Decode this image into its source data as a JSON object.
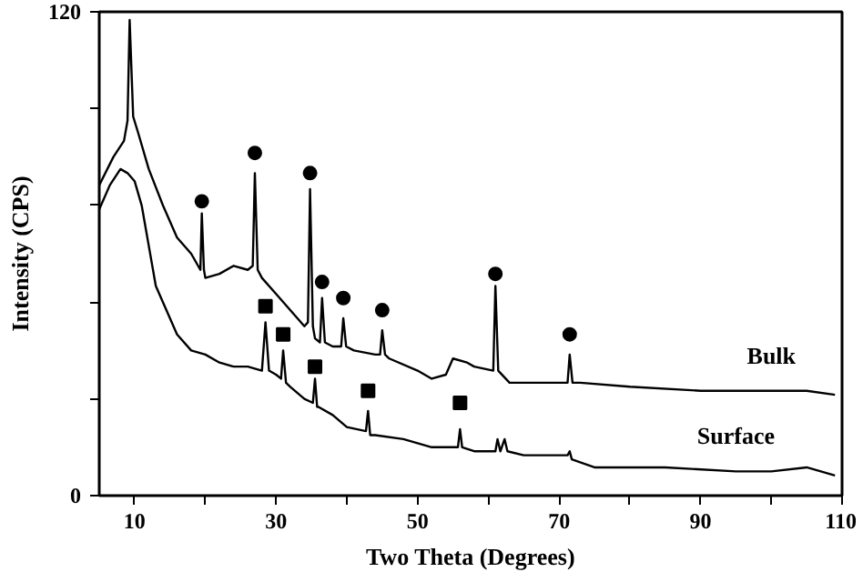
{
  "chart_data": {
    "type": "line",
    "xlabel": "Two Theta (Degrees)",
    "ylabel": "Intensity (CPS)",
    "xlim": [
      5,
      110
    ],
    "ylim": [
      0,
      120
    ],
    "xticks": [
      10,
      {
        "value": 20,
        "label": null
      },
      30,
      {
        "value": 40,
        "label": null
      },
      50,
      {
        "value": 60,
        "label": null
      },
      70,
      {
        "value": 80,
        "label": null
      },
      90,
      {
        "value": 100,
        "label": null
      },
      110
    ],
    "yticks": [
      0,
      {
        "value": 24,
        "label": null
      },
      {
        "value": 48,
        "label": null
      },
      {
        "value": 72,
        "label": null
      },
      {
        "value": 96,
        "label": null
      },
      120
    ],
    "grid": false,
    "line_style": "solid",
    "series": [
      {
        "name": "Bulk",
        "color": "#000000",
        "marker": "none",
        "x": [
          5,
          7,
          8.5,
          9,
          9.3,
          9.8,
          10.5,
          12,
          14,
          16,
          18,
          19.3,
          19.5,
          19.8,
          20,
          22,
          24,
          26,
          26.7,
          27,
          27.4,
          28,
          30,
          32,
          34,
          34.5,
          34.8,
          35.2,
          35.5,
          36.2,
          36.5,
          36.9,
          38,
          39.2,
          39.5,
          39.9,
          41,
          44,
          44.7,
          45,
          45.4,
          46,
          50,
          52,
          54,
          55,
          57,
          58,
          60.7,
          61,
          61.4,
          63,
          70,
          71.2,
          71.5,
          71.9,
          73,
          80,
          90,
          100,
          105,
          109
        ],
        "values": [
          77,
          84,
          88,
          93,
          118,
          94,
          90,
          81,
          72,
          64,
          60,
          56,
          70,
          56,
          54,
          55,
          57,
          56,
          57,
          80,
          56,
          54,
          50,
          46,
          42,
          43,
          76,
          42,
          39,
          38,
          49,
          38,
          37,
          37,
          44,
          37,
          36,
          35,
          35,
          41,
          35,
          34,
          31,
          29,
          30,
          34,
          33,
          32,
          31,
          52,
          31,
          28,
          28,
          28,
          35,
          28,
          28,
          27,
          26,
          26,
          26,
          25
        ]
      },
      {
        "name": "Surface",
        "color": "#000000",
        "marker": "none",
        "x": [
          5,
          6.5,
          8,
          9,
          10,
          11,
          12,
          13,
          14,
          16,
          18,
          20,
          22,
          24,
          26,
          28,
          28.5,
          29,
          30,
          30.7,
          31,
          31.4,
          32,
          34,
          35.2,
          35.5,
          35.8,
          36,
          38,
          40,
          42.7,
          43,
          43.3,
          44,
          48,
          52,
          55.7,
          56,
          56.3,
          58,
          61,
          61.3,
          61.7,
          62.3,
          62.7,
          65,
          71.2,
          71.5,
          71.8,
          75,
          85,
          95,
          100,
          105,
          109
        ],
        "values": [
          71,
          77,
          81,
          80,
          78,
          72,
          62,
          52,
          48,
          40,
          36,
          35,
          33,
          32,
          32,
          31,
          43,
          31,
          30,
          29,
          36,
          28,
          27,
          24,
          23,
          29,
          22,
          22,
          20,
          17,
          16,
          21,
          15,
          15,
          14,
          12,
          12,
          16.5,
          12,
          11,
          11,
          14,
          11,
          14,
          11,
          10,
          10,
          11,
          9,
          7,
          7,
          6,
          6,
          7,
          5
        ]
      },
      {
        "type": "scatter",
        "color": "#000000",
        "marker": "circle",
        "x": [
          19.5,
          27,
          34.8,
          36.5,
          39.5,
          45,
          61,
          71.5
        ],
        "values": [
          73,
          85,
          80,
          53,
          49,
          46,
          55,
          40
        ]
      },
      {
        "type": "scatter",
        "color": "#000000",
        "marker": "square",
        "x": [
          28.5,
          31,
          35.5,
          43,
          56
        ],
        "values": [
          47,
          40,
          32,
          26,
          23
        ]
      }
    ]
  }
}
